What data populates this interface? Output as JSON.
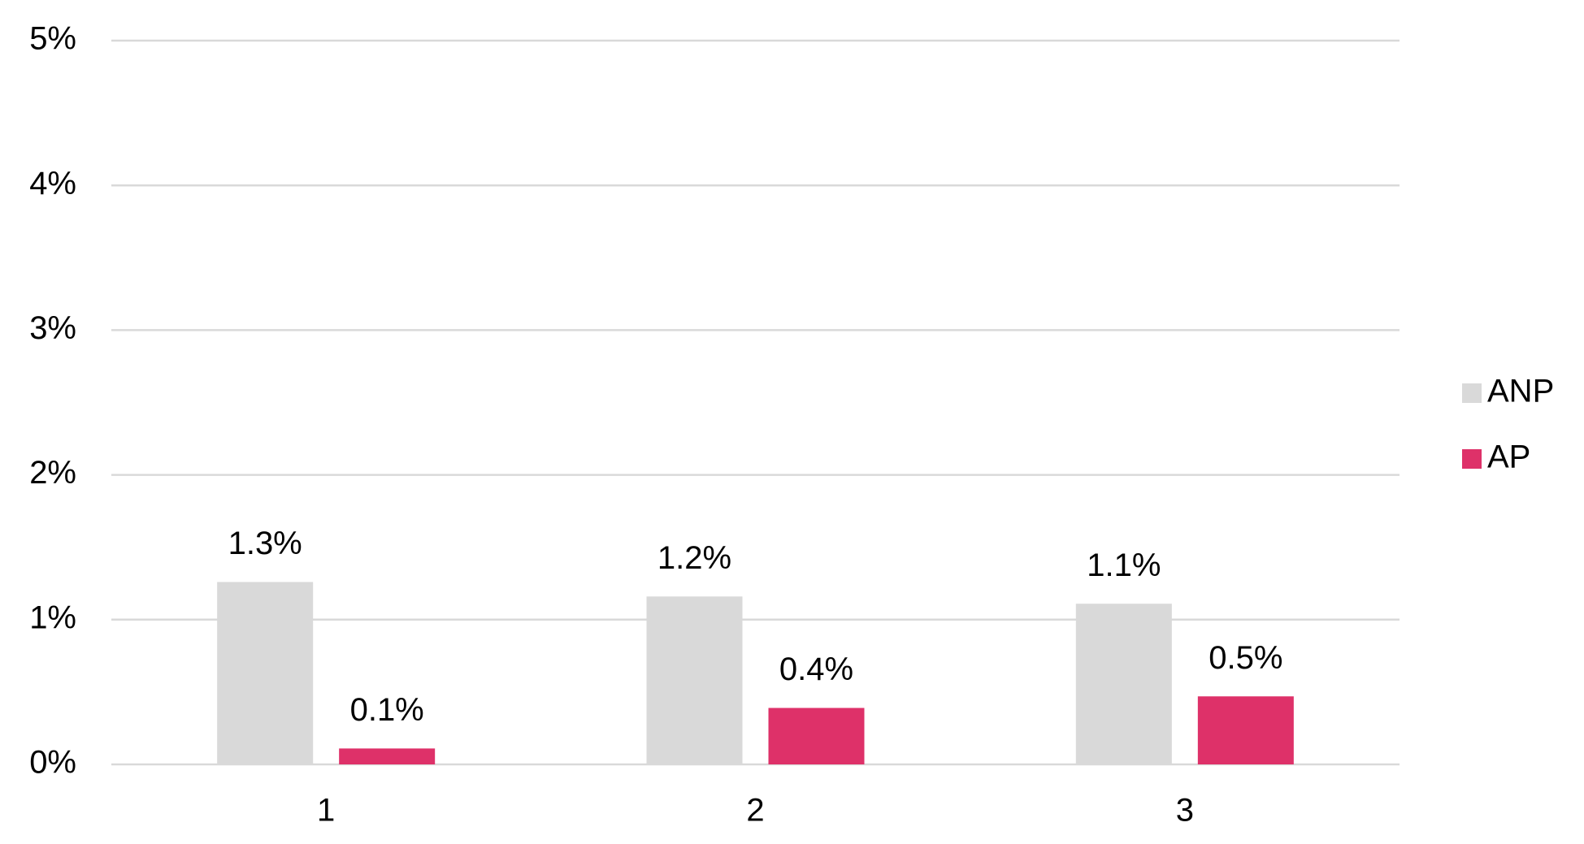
{
  "chart_data": {
    "type": "bar",
    "categories": [
      "1",
      "2",
      "3"
    ],
    "series": [
      {
        "name": "ANP",
        "color": "#d9d9d9",
        "values": [
          1.26,
          1.16,
          1.11
        ],
        "value_labels": [
          "1.3%",
          "1.2%",
          "1.1%"
        ]
      },
      {
        "name": "AP",
        "color": "#de3169",
        "values": [
          0.11,
          0.39,
          0.47
        ],
        "value_labels": [
          "0.1%",
          "0.4%",
          "0.5%"
        ]
      }
    ],
    "ylim": [
      0,
      5
    ],
    "yticks": [
      {
        "value": 0,
        "label": "0%"
      },
      {
        "value": 1,
        "label": "1%"
      },
      {
        "value": 2,
        "label": "2%"
      },
      {
        "value": 3,
        "label": "3%"
      },
      {
        "value": 4,
        "label": "4%"
      },
      {
        "value": 5,
        "label": "5%"
      }
    ],
    "grid": true,
    "legend": "right"
  }
}
